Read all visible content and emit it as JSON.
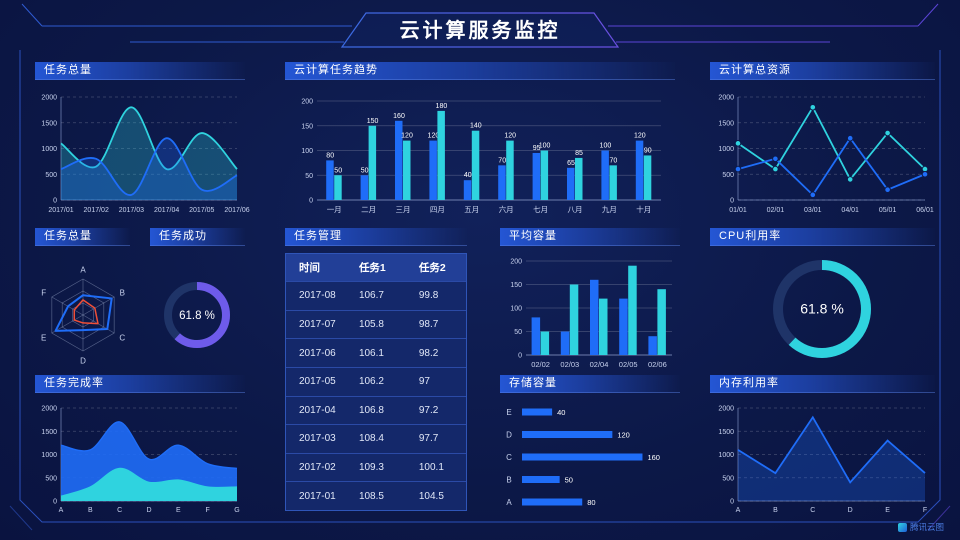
{
  "header": {
    "title": "云计算服务监控"
  },
  "watermark": "腾讯云图",
  "colors": {
    "blue": "#1f6df8",
    "cyan": "#2fd3df",
    "purple": "#6e5bea",
    "red": "#ef4f38",
    "donut_track": "#1f3468",
    "grid": "rgba(255,255,255,0.22)",
    "axis": "rgba(165,185,235,0.5)",
    "tick_text": "#c9d3ef"
  },
  "chart_data": [
    {
      "id": "task-total-line",
      "type": "line",
      "title": "任务总量",
      "smooth": true,
      "fill": true,
      "markers": false,
      "x": [
        "2017/01",
        "2017/02",
        "2017/03",
        "2017/04",
        "2017/05",
        "2017/06"
      ],
      "ylim": [
        0,
        2000
      ],
      "yticks": [
        0,
        500,
        1000,
        1500,
        2000
      ],
      "series": [
        {
          "name": "cyan-series",
          "color": "cyan",
          "values": [
            1100,
            650,
            1800,
            600,
            1300,
            600
          ]
        },
        {
          "name": "blue-series",
          "color": "blue",
          "values": [
            600,
            800,
            100,
            1200,
            200,
            480
          ]
        }
      ]
    },
    {
      "id": "task-trend-bars",
      "type": "bar",
      "title": "云计算任务趋势",
      "value_labels": true,
      "categories": [
        "一月",
        "二月",
        "三月",
        "四月",
        "五月",
        "六月",
        "七月",
        "八月",
        "九月",
        "十月"
      ],
      "ylim": [
        0,
        200
      ],
      "yticks": [
        0,
        50,
        100,
        150,
        200
      ],
      "series": [
        {
          "name": "blue-series",
          "color": "blue",
          "values": [
            80,
            50,
            160,
            120,
            40,
            70,
            95,
            65,
            100,
            120
          ]
        },
        {
          "name": "cyan-series",
          "color": "cyan",
          "values": [
            50,
            150,
            120,
            180,
            140,
            120,
            100,
            85,
            70,
            90
          ]
        }
      ]
    },
    {
      "id": "total-resources-line",
      "type": "line",
      "title": "云计算总资源",
      "smooth": false,
      "fill": false,
      "markers": true,
      "x": [
        "01/01",
        "02/01",
        "03/01",
        "04/01",
        "05/01",
        "06/01"
      ],
      "ylim": [
        0,
        2000
      ],
      "yticks": [
        0,
        500,
        1000,
        1500,
        2000
      ],
      "series": [
        {
          "name": "cyan-series",
          "color": "cyan",
          "values": [
            1100,
            600,
            1800,
            400,
            1300,
            600
          ]
        },
        {
          "name": "blue-series",
          "color": "blue",
          "values": [
            600,
            800,
            100,
            1200,
            200,
            500
          ]
        }
      ]
    },
    {
      "id": "task-radar",
      "type": "radar",
      "title": "任务总量",
      "axes": [
        "A",
        "B",
        "C",
        "D",
        "E",
        "F"
      ],
      "max": 100,
      "series": [
        {
          "name": "blue-series",
          "color": "blue",
          "values": [
            55,
            92,
            78,
            42,
            88,
            48
          ]
        },
        {
          "name": "red-series",
          "color": "red",
          "values": [
            42,
            38,
            48,
            22,
            28,
            28
          ]
        }
      ]
    },
    {
      "id": "task-success-donut",
      "type": "donut",
      "title": "任务成功",
      "value": 61.8,
      "label": "61.8 %",
      "color": "purple"
    },
    {
      "id": "task-table",
      "type": "table",
      "title": "任务管理",
      "headers": [
        "时间",
        "任务1",
        "任务2"
      ],
      "rows": [
        [
          "2017-08",
          "106.7",
          "99.8"
        ],
        [
          "2017-07",
          "105.8",
          "98.7"
        ],
        [
          "2017-06",
          "106.1",
          "98.2"
        ],
        [
          "2017-05",
          "106.2",
          "97"
        ],
        [
          "2017-04",
          "106.8",
          "97.2"
        ],
        [
          "2017-03",
          "108.4",
          "97.7"
        ],
        [
          "2017-02",
          "109.3",
          "100.1"
        ],
        [
          "2017-01",
          "108.5",
          "104.5"
        ]
      ]
    },
    {
      "id": "avg-capacity-bars",
      "type": "bar",
      "title": "平均容量",
      "value_labels": false,
      "categories": [
        "02/02",
        "02/03",
        "02/04",
        "02/05",
        "02/06"
      ],
      "ylim": [
        0,
        200
      ],
      "yticks": [
        0,
        50,
        100,
        150,
        200
      ],
      "series": [
        {
          "name": "blue-series",
          "color": "blue",
          "values": [
            80,
            50,
            160,
            120,
            40
          ]
        },
        {
          "name": "cyan-series",
          "color": "cyan",
          "values": [
            50,
            150,
            120,
            190,
            140
          ]
        }
      ]
    },
    {
      "id": "cpu-usage-donut",
      "type": "donut",
      "title": "CPU利用率",
      "value": 61.8,
      "label": "61.8 %",
      "color": "cyan"
    },
    {
      "id": "task-completion-area",
      "type": "area",
      "title": "任务完成率",
      "smooth": true,
      "x": [
        "A",
        "B",
        "C",
        "D",
        "E",
        "F",
        "G"
      ],
      "ylim": [
        0,
        2000
      ],
      "yticks": [
        0,
        500,
        1000,
        1500,
        2000
      ],
      "series": [
        {
          "name": "blue-series",
          "color": "blue",
          "values": [
            1200,
            1100,
            1700,
            900,
            1200,
            800,
            700
          ]
        },
        {
          "name": "cyan-series",
          "color": "cyan",
          "values": [
            100,
            300,
            700,
            400,
            450,
            300,
            300
          ]
        }
      ]
    },
    {
      "id": "storage-capacity-hbars",
      "type": "hbar",
      "title": "存储容量",
      "xmax": 170,
      "items": [
        {
          "label": "E",
          "value": 40
        },
        {
          "label": "D",
          "value": 120
        },
        {
          "label": "C",
          "value": 160
        },
        {
          "label": "B",
          "value": 50
        },
        {
          "label": "A",
          "value": 80
        }
      ]
    },
    {
      "id": "memory-usage-line",
      "type": "line",
      "title": "内存利用率",
      "smooth": false,
      "fill": true,
      "markers": false,
      "x": [
        "A",
        "B",
        "C",
        "D",
        "E",
        "F"
      ],
      "ylim": [
        0,
        2000
      ],
      "yticks": [
        0,
        500,
        1000,
        1500,
        2000
      ],
      "series": [
        {
          "name": "blue-series",
          "color": "blue",
          "values": [
            1100,
            600,
            1800,
            400,
            1300,
            600
          ]
        }
      ]
    }
  ]
}
